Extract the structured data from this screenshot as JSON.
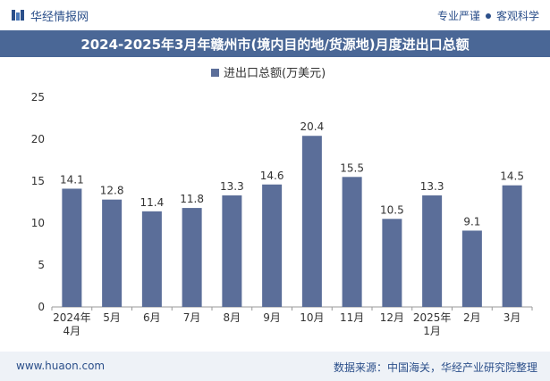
{
  "header": {
    "brand_name": "华经情报网",
    "tagline_left": "专业严谨",
    "tagline_right": "客观科学"
  },
  "footer": {
    "website": "www.huaon.com",
    "source": "数据来源：中国海关，华经产业研究院整理"
  },
  "colors": {
    "bar": "#5b6e99",
    "title_bg": "#4a6796",
    "brand": "#2b4f8a"
  },
  "chart_data": {
    "type": "bar",
    "title": "2024-2025年3月年赣州市(境内目的地/货源地)月度进出口总额",
    "legend": "进出口总额(万美元)",
    "legend_position": "top-center",
    "xlabel": "",
    "ylabel": "",
    "ylim": [
      0,
      25
    ],
    "yticks": [
      0,
      5,
      10,
      15,
      20,
      25
    ],
    "grid": false,
    "categories": [
      [
        "2024年",
        "4月"
      ],
      [
        "5月"
      ],
      [
        "6月"
      ],
      [
        "7月"
      ],
      [
        "8月"
      ],
      [
        "9月"
      ],
      [
        "10月"
      ],
      [
        "11月"
      ],
      [
        "12月"
      ],
      [
        "2025年",
        "1月"
      ],
      [
        "2月"
      ],
      [
        "3月"
      ]
    ],
    "values": [
      14.1,
      12.8,
      11.4,
      11.8,
      13.3,
      14.6,
      20.4,
      15.5,
      10.5,
      13.3,
      9.1,
      14.5
    ]
  }
}
